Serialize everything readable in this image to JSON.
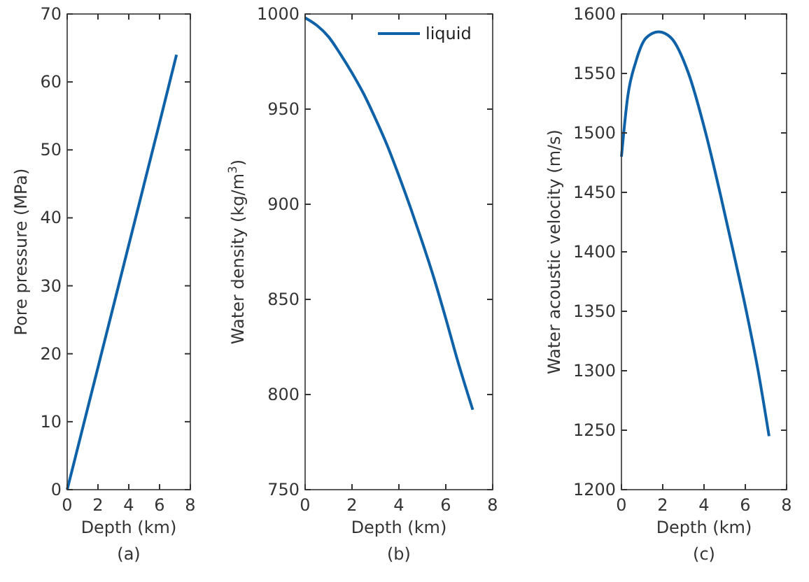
{
  "chart_data": [
    {
      "type": "line",
      "xlabel": "Depth (km)",
      "ylabel": "Pore pressure (MPa)",
      "annotations": [
        "(a)"
      ],
      "xlim": [
        0,
        8
      ],
      "xticks": [
        0,
        2,
        4,
        6,
        8
      ],
      "ylim": [
        0,
        70
      ],
      "yticks": [
        0,
        10,
        20,
        30,
        40,
        50,
        60,
        70
      ],
      "grid": false,
      "legend": false,
      "series": [
        {
          "color": "#0f62a8",
          "x": [
            0,
            1,
            2,
            3,
            4,
            5,
            6,
            7.1
          ],
          "values": [
            0,
            9,
            18,
            27,
            36,
            45,
            54,
            64
          ]
        }
      ]
    },
    {
      "type": "line",
      "xlabel": "Depth (km)",
      "ylabel": "Water density (kg/m$^{3}$)",
      "annotations": [
        "(b)"
      ],
      "xlim": [
        0,
        8
      ],
      "xticks": [
        0,
        2,
        4,
        6,
        8
      ],
      "ylim": [
        750,
        1000
      ],
      "yticks": [
        750,
        800,
        850,
        900,
        950,
        1000
      ],
      "grid": false,
      "legend": "top right",
      "series": [
        {
          "name": "liquid",
          "color": "#0f62a8",
          "x": [
            0,
            0.5,
            1,
            1.5,
            2,
            2.5,
            3,
            3.5,
            4,
            4.5,
            5,
            5.5,
            6,
            6.5,
            7.15
          ],
          "values": [
            998,
            994,
            988,
            979,
            969,
            958,
            945,
            931,
            915,
            898,
            880,
            861,
            840,
            818,
            792
          ]
        }
      ]
    },
    {
      "type": "line",
      "xlabel": "Depth (km)",
      "ylabel": "Water acoustic velocity (m/s)",
      "annotations": [
        "(c)"
      ],
      "xlim": [
        0,
        8
      ],
      "xticks": [
        0,
        2,
        4,
        6,
        8
      ],
      "ylim": [
        1200,
        1600
      ],
      "yticks": [
        1200,
        1250,
        1300,
        1350,
        1400,
        1450,
        1500,
        1550,
        1600
      ],
      "grid": false,
      "legend": false,
      "series": [
        {
          "color": "#0f62a8",
          "x": [
            0,
            0.3,
            0.7,
            1.2,
            1.8,
            2.4,
            3.25,
            4.08,
            4.77,
            5.42,
            6.05,
            6.62,
            7.15
          ],
          "values": [
            1480,
            1530,
            1560,
            1580,
            1585,
            1580,
            1550,
            1500,
            1450,
            1400,
            1350,
            1300,
            1245
          ]
        }
      ]
    }
  ]
}
